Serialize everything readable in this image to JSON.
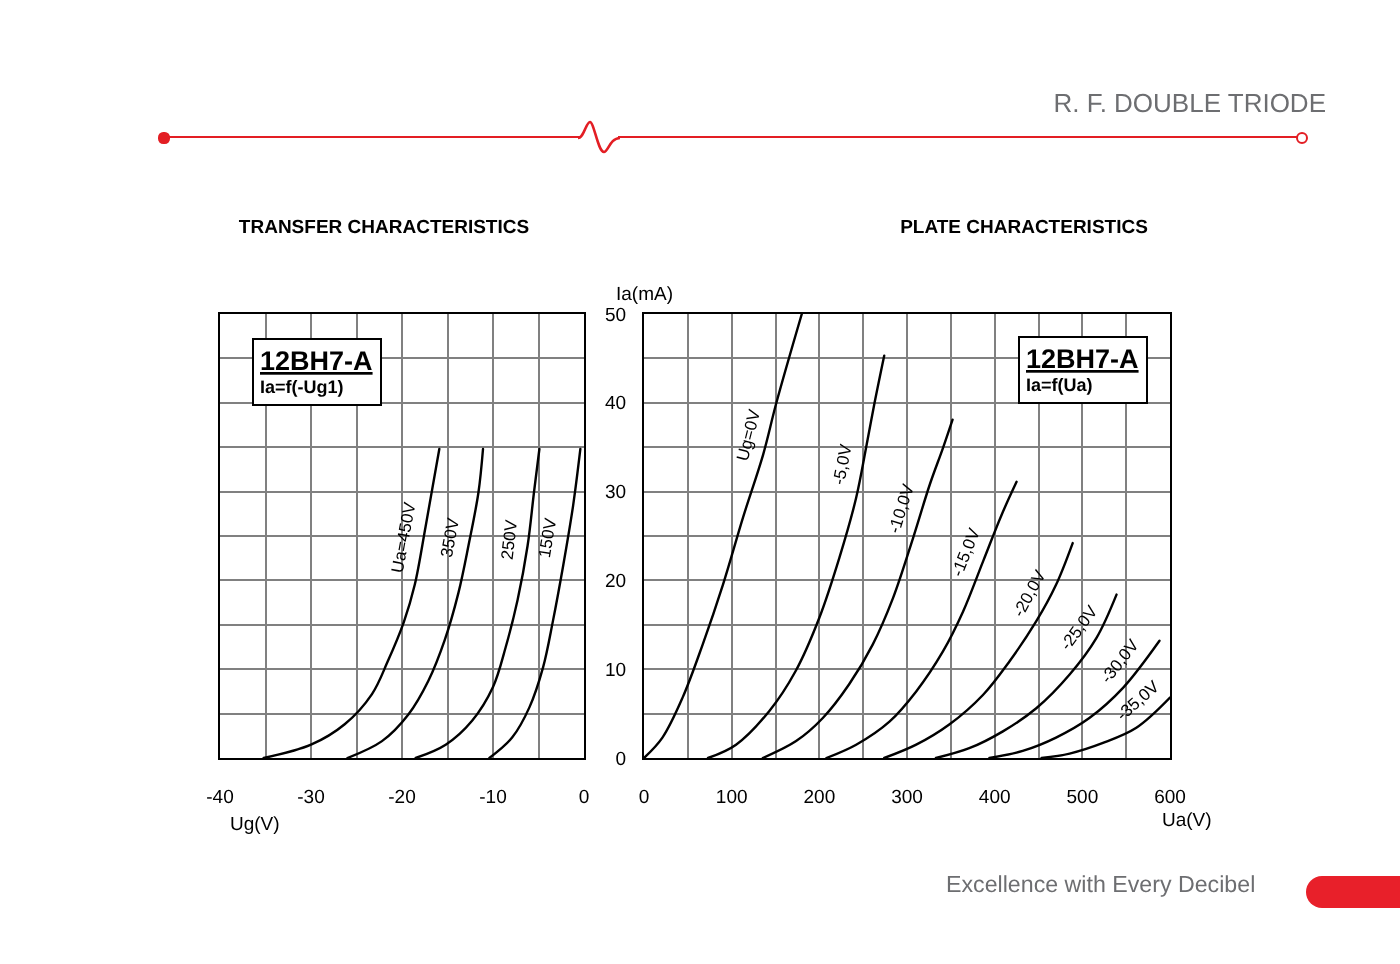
{
  "chart_data": [
    {
      "type": "line",
      "title": "TRANSFER CHARACTERISTICS",
      "xlabel": "Ug(V)",
      "annotations": [
        "12BH7-A",
        "Ia=f(-Ug1)"
      ],
      "xlim": [
        -40,
        0
      ],
      "xticks": [
        -40,
        {
          "value": -35,
          "label": null
        },
        -30,
        {
          "value": -25,
          "label": null
        },
        -20,
        {
          "value": -15,
          "label": null
        },
        -10,
        {
          "value": -5,
          "label": null
        },
        0
      ],
      "ylim": [
        0,
        50
      ],
      "yticks": [
        0,
        {
          "value": 5,
          "label": null
        },
        10,
        {
          "value": 15,
          "label": null
        },
        20,
        {
          "value": 25,
          "label": null
        },
        30,
        {
          "value": 35,
          "label": null
        },
        40,
        {
          "value": 45,
          "label": null
        },
        50
      ],
      "tick_labels": "x",
      "grid": true,
      "marker": "none",
      "series": [
        {
          "name": "Ua=450V",
          "color": "#000000",
          "x": [
            -35.2,
            -30,
            -26.3,
            -23.3,
            -21.6,
            -19.8,
            -18.6,
            -17.4,
            -15.9
          ],
          "values": [
            0,
            1.5,
            3.8,
            7.2,
            10.8,
            15.3,
            19.5,
            26.1,
            34.8
          ]
        },
        {
          "name": "350V",
          "color": "#000000",
          "x": [
            -26,
            -22.2,
            -19.3,
            -17.1,
            -15.3,
            -13.8,
            -12.7,
            -11.6,
            -11.1
          ],
          "values": [
            0,
            1.9,
            4.9,
            8.7,
            13.3,
            18.6,
            23.9,
            29.9,
            34.8
          ]
        },
        {
          "name": "250V",
          "color": "#000000",
          "x": [
            -18.5,
            -15.2,
            -12.3,
            -10,
            -8.6,
            -7.3,
            -6.2,
            -5.5,
            -4.9
          ],
          "values": [
            0,
            1.5,
            4.2,
            8,
            12.5,
            17.8,
            23.9,
            29.9,
            34.8
          ]
        },
        {
          "name": "150V",
          "color": "#000000",
          "x": [
            -10.4,
            -7.9,
            -6,
            -4.5,
            -3.4,
            -2.3,
            -1.2,
            -0.4
          ],
          "values": [
            0,
            2.3,
            5.7,
            10.2,
            15.5,
            21.6,
            28.4,
            34.8
          ]
        }
      ]
    },
    {
      "type": "line",
      "title": "PLATE CHARACTERISTICS",
      "xlabel": "Ua(V)",
      "ylabel": "Ia(mA)",
      "annotations": [
        "12BH7-A",
        "Ia=f(Ua)",
        "R. F. DOUBLE TRIODE",
        "Excellence with Every Decibel"
      ],
      "xlim": [
        0,
        600
      ],
      "xticks": [
        0,
        {
          "value": 50,
          "label": null
        },
        100,
        {
          "value": 150,
          "label": null
        },
        200,
        {
          "value": 250,
          "label": null
        },
        300,
        {
          "value": 350,
          "label": null
        },
        400,
        {
          "value": 450,
          "label": null
        },
        500,
        {
          "value": 550,
          "label": null
        },
        600
      ],
      "ylim": [
        0,
        50
      ],
      "yticks": [
        0,
        {
          "value": 5,
          "label": null
        },
        10,
        {
          "value": 15,
          "label": null
        },
        20,
        {
          "value": 25,
          "label": null
        },
        30,
        {
          "value": 35,
          "label": null
        },
        40,
        {
          "value": 45,
          "label": null
        },
        50
      ],
      "grid": true,
      "marker": "none",
      "series": [
        {
          "name": "Ug=0V",
          "color": "#000000",
          "x": [
            0,
            21,
            44,
            67,
            90,
            113,
            136,
            151,
            180
          ],
          "values": [
            0,
            2.3,
            6.8,
            12.8,
            19.5,
            27.1,
            34.2,
            40,
            50
          ]
        },
        {
          "name": "-5,0V",
          "color": "#000000",
          "x": [
            73,
            105,
            143,
            173,
            200,
            223,
            242,
            254,
            263,
            274
          ],
          "values": [
            0,
            1.5,
            5.3,
            9.8,
            15.8,
            22.6,
            29.3,
            35.3,
            40,
            45.3
          ]
        },
        {
          "name": "-10,0V",
          "color": "#000000",
          "x": [
            135.5,
            173.5,
            204,
            234,
            261,
            284,
            307,
            326,
            341,
            352
          ],
          "values": [
            0,
            1.9,
            4.5,
            8.3,
            12.8,
            18,
            24.8,
            30.8,
            34.9,
            38.1
          ]
        },
        {
          "name": "-15,0V",
          "color": "#000000",
          "x": [
            208,
            242,
            280,
            310.5,
            341,
            364,
            387,
            408,
            425
          ],
          "values": [
            0,
            1.5,
            4.1,
            7.5,
            12,
            16.5,
            22.2,
            27.4,
            31.1
          ]
        },
        {
          "name": "-20,0V",
          "color": "#000000",
          "x": [
            274,
            310.5,
            348.6,
            386.6,
            417,
            447.5,
            470,
            489
          ],
          "values": [
            0,
            1.5,
            3.8,
            7.1,
            10.9,
            15.4,
            19.5,
            24.2
          ]
        },
        {
          "name": "-25,0V",
          "color": "#000000",
          "x": [
            333,
            371,
            409.4,
            447.5,
            485.5,
            516,
            539
          ],
          "values": [
            0,
            1.1,
            3,
            5.6,
            9.4,
            13.5,
            18.4
          ]
        },
        {
          "name": "-30,0V",
          "color": "#000000",
          "x": [
            394,
            432,
            470,
            508,
            546.4,
            588
          ],
          "values": [
            0,
            0.8,
            2.3,
            4.5,
            7.9,
            13.2
          ]
        },
        {
          "name": "-35,0V",
          "color": "#000000",
          "x": [
            453.5,
            485.5,
            523.6,
            561.6,
            600
          ],
          "values": [
            0,
            0.5,
            1.7,
            3.4,
            6.8
          ]
        }
      ]
    }
  ]
}
